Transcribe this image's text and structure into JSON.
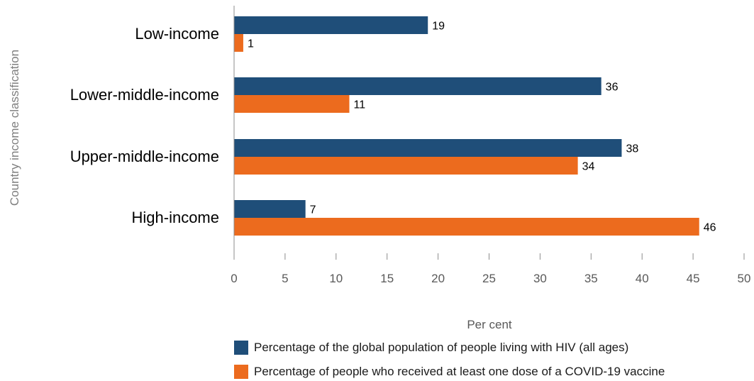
{
  "chart_data": {
    "type": "bar",
    "orientation": "horizontal",
    "categories": [
      "Low-income",
      "Lower-middle-income",
      "Upper-middle-income",
      "High-income"
    ],
    "series": [
      {
        "name": "Percentage of the global population of people living with HIV (all ages)",
        "values": [
          19,
          36,
          38,
          7
        ],
        "labels": [
          "19",
          "36",
          "38",
          "7"
        ],
        "color": "#1f4e79"
      },
      {
        "name": "Percentage of people who received at least one dose of a COVID-19 vaccine",
        "values": [
          0.9,
          11.3,
          33.7,
          45.6
        ],
        "labels": [
          "1",
          "11",
          "34",
          "46"
        ],
        "color": "#ec6b1e"
      }
    ],
    "xlim": [
      0,
      50
    ],
    "xticks": [
      "0",
      "5",
      "10",
      "15",
      "20",
      "25",
      "30",
      "35",
      "40",
      "45",
      "50"
    ],
    "xlabel": "Per cent",
    "ylabel": "Country income classification",
    "grid": false,
    "legend": "bottom"
  }
}
